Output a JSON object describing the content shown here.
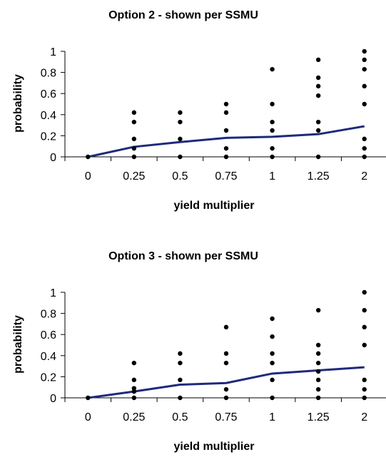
{
  "chart_data": [
    {
      "type": "scatter",
      "title": "Option 2 - shown per SSMU",
      "xlabel": "yield multiplier",
      "ylabel": "probability",
      "categories": [
        "0",
        "0.25",
        "0.5",
        "0.75",
        "1",
        "1.25",
        "2"
      ],
      "y_ticks": [
        "0",
        "0.2",
        "0.4",
        "0.6",
        "0.8",
        "1"
      ],
      "ylim": [
        0,
        1
      ],
      "grid": false,
      "legend": "none",
      "series": [
        {
          "type": "scatter",
          "color": "#000000",
          "points": [
            {
              "x": "0",
              "y": 0
            },
            {
              "x": "0.25",
              "y": 0
            },
            {
              "x": "0.25",
              "y": 0.08
            },
            {
              "x": "0.25",
              "y": 0.17
            },
            {
              "x": "0.25",
              "y": 0.33
            },
            {
              "x": "0.25",
              "y": 0.42
            },
            {
              "x": "0.5",
              "y": 0
            },
            {
              "x": "0.5",
              "y": 0.17
            },
            {
              "x": "0.5",
              "y": 0.33
            },
            {
              "x": "0.5",
              "y": 0.42
            },
            {
              "x": "0.75",
              "y": 0
            },
            {
              "x": "0.75",
              "y": 0.08
            },
            {
              "x": "0.75",
              "y": 0.25
            },
            {
              "x": "0.75",
              "y": 0.42
            },
            {
              "x": "0.75",
              "y": 0.5
            },
            {
              "x": "1",
              "y": 0
            },
            {
              "x": "1",
              "y": 0.08
            },
            {
              "x": "1",
              "y": 0.25
            },
            {
              "x": "1",
              "y": 0.33
            },
            {
              "x": "1",
              "y": 0.5
            },
            {
              "x": "1",
              "y": 0.83
            },
            {
              "x": "1.25",
              "y": 0
            },
            {
              "x": "1.25",
              "y": 0.25
            },
            {
              "x": "1.25",
              "y": 0.33
            },
            {
              "x": "1.25",
              "y": 0.58
            },
            {
              "x": "1.25",
              "y": 0.67
            },
            {
              "x": "1.25",
              "y": 0.75
            },
            {
              "x": "1.25",
              "y": 0.92
            },
            {
              "x": "2",
              "y": 0
            },
            {
              "x": "2",
              "y": 0.08
            },
            {
              "x": "2",
              "y": 0.17
            },
            {
              "x": "2",
              "y": 0.5
            },
            {
              "x": "2",
              "y": 0.67
            },
            {
              "x": "2",
              "y": 0.83
            },
            {
              "x": "2",
              "y": 0.92
            },
            {
              "x": "2",
              "y": 1
            }
          ]
        },
        {
          "type": "line",
          "color": "#1f2a7a",
          "values": [
            0,
            0.095,
            0.14,
            0.18,
            0.19,
            0.215,
            0.29
          ]
        }
      ]
    },
    {
      "type": "scatter",
      "title": "Option 3 - shown per SSMU",
      "xlabel": "yield multiplier",
      "ylabel": "probability",
      "categories": [
        "0",
        "0.25",
        "0.5",
        "0.75",
        "1",
        "1.25",
        "2"
      ],
      "y_ticks": [
        "0",
        "0.2",
        "0.4",
        "0.6",
        "0.8",
        "1"
      ],
      "ylim": [
        0,
        1
      ],
      "grid": false,
      "legend": "none",
      "series": [
        {
          "type": "scatter",
          "color": "#000000",
          "points": [
            {
              "x": "0",
              "y": 0
            },
            {
              "x": "0.25",
              "y": 0
            },
            {
              "x": "0.25",
              "y": 0.06
            },
            {
              "x": "0.25",
              "y": 0.09
            },
            {
              "x": "0.25",
              "y": 0.17
            },
            {
              "x": "0.25",
              "y": 0.33
            },
            {
              "x": "0.5",
              "y": 0
            },
            {
              "x": "0.5",
              "y": 0.17
            },
            {
              "x": "0.5",
              "y": 0.33
            },
            {
              "x": "0.5",
              "y": 0.42
            },
            {
              "x": "0.75",
              "y": 0
            },
            {
              "x": "0.75",
              "y": 0.08
            },
            {
              "x": "0.75",
              "y": 0.33
            },
            {
              "x": "0.75",
              "y": 0.42
            },
            {
              "x": "0.75",
              "y": 0.67
            },
            {
              "x": "1",
              "y": 0
            },
            {
              "x": "1",
              "y": 0.17
            },
            {
              "x": "1",
              "y": 0.33
            },
            {
              "x": "1",
              "y": 0.42
            },
            {
              "x": "1",
              "y": 0.58
            },
            {
              "x": "1",
              "y": 0.75
            },
            {
              "x": "1.25",
              "y": 0
            },
            {
              "x": "1.25",
              "y": 0.08
            },
            {
              "x": "1.25",
              "y": 0.17
            },
            {
              "x": "1.25",
              "y": 0.25
            },
            {
              "x": "1.25",
              "y": 0.33
            },
            {
              "x": "1.25",
              "y": 0.42
            },
            {
              "x": "1.25",
              "y": 0.5
            },
            {
              "x": "1.25",
              "y": 0.83
            },
            {
              "x": "2",
              "y": 0
            },
            {
              "x": "2",
              "y": 0.08
            },
            {
              "x": "2",
              "y": 0.17
            },
            {
              "x": "2",
              "y": 0.5
            },
            {
              "x": "2",
              "y": 0.67
            },
            {
              "x": "2",
              "y": 0.83
            },
            {
              "x": "2",
              "y": 1
            }
          ]
        },
        {
          "type": "line",
          "color": "#1f2a7a",
          "values": [
            0,
            0.06,
            0.125,
            0.14,
            0.23,
            0.26,
            0.29
          ]
        }
      ]
    }
  ]
}
